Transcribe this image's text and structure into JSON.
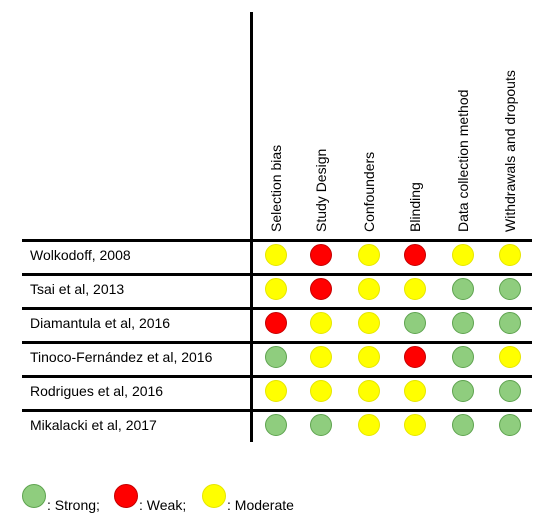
{
  "columns": [
    "Selection bias",
    "Study Design",
    "Confounders",
    "Blinding",
    "Data collection method",
    "Withdrawals and dropouts"
  ],
  "rows": [
    {
      "label": "Wolkodoff, 2008",
      "ratings": [
        "moderate",
        "weak",
        "moderate",
        "weak",
        "moderate",
        "moderate"
      ]
    },
    {
      "label": "Tsai et al, 2013",
      "ratings": [
        "moderate",
        "weak",
        "moderate",
        "moderate",
        "strong",
        "strong"
      ]
    },
    {
      "label": "Diamantula et al, 2016",
      "ratings": [
        "weak",
        "moderate",
        "moderate",
        "strong",
        "strong",
        "strong"
      ]
    },
    {
      "label": "Tinoco-Fernández et al, 2016",
      "ratings": [
        "strong",
        "moderate",
        "moderate",
        "weak",
        "strong",
        "moderate"
      ]
    },
    {
      "label": "Rodrigues et al, 2016",
      "ratings": [
        "moderate",
        "moderate",
        "moderate",
        "moderate",
        "strong",
        "strong"
      ]
    },
    {
      "label": "Mikalacki et al, 2017",
      "ratings": [
        "strong",
        "strong",
        "moderate",
        "moderate",
        "strong",
        "strong"
      ]
    }
  ],
  "legend": [
    {
      "key": "strong",
      "label": ": Strong;"
    },
    {
      "key": "weak",
      "label": ": Weak;"
    },
    {
      "key": "moderate",
      "label": ": Moderate"
    }
  ],
  "colors": {
    "strong": {
      "fill": "#8fcd7e",
      "stroke": "#5ea34f"
    },
    "weak": {
      "fill": "#ff0000",
      "stroke": "#c40000"
    },
    "moderate": {
      "fill": "#ffff00",
      "stroke": "#e6e600"
    }
  }
}
